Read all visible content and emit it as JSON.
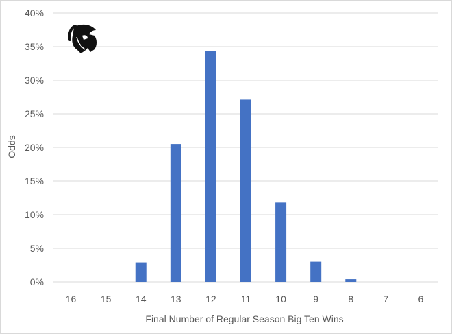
{
  "chart_data": {
    "type": "bar",
    "title": "",
    "xlabel": "Final Number of Regular Season Big Ten Wins",
    "ylabel": "Odds",
    "categories": [
      "16",
      "15",
      "14",
      "13",
      "12",
      "11",
      "10",
      "9",
      "8",
      "7",
      "6"
    ],
    "values": [
      0,
      0,
      2.9,
      20.5,
      34.3,
      27.1,
      11.8,
      3.0,
      0.4,
      0,
      0
    ],
    "value_unit": "%",
    "ylim": [
      0,
      40
    ],
    "yticks": [
      "0%",
      "5%",
      "10%",
      "15%",
      "20%",
      "25%",
      "30%",
      "35%",
      "40%"
    ],
    "grid": true,
    "legend": "none",
    "bar_color": "#4472c4",
    "grid_color": "#d9d9d9",
    "logo_icon": "spartan-helmet-icon"
  }
}
